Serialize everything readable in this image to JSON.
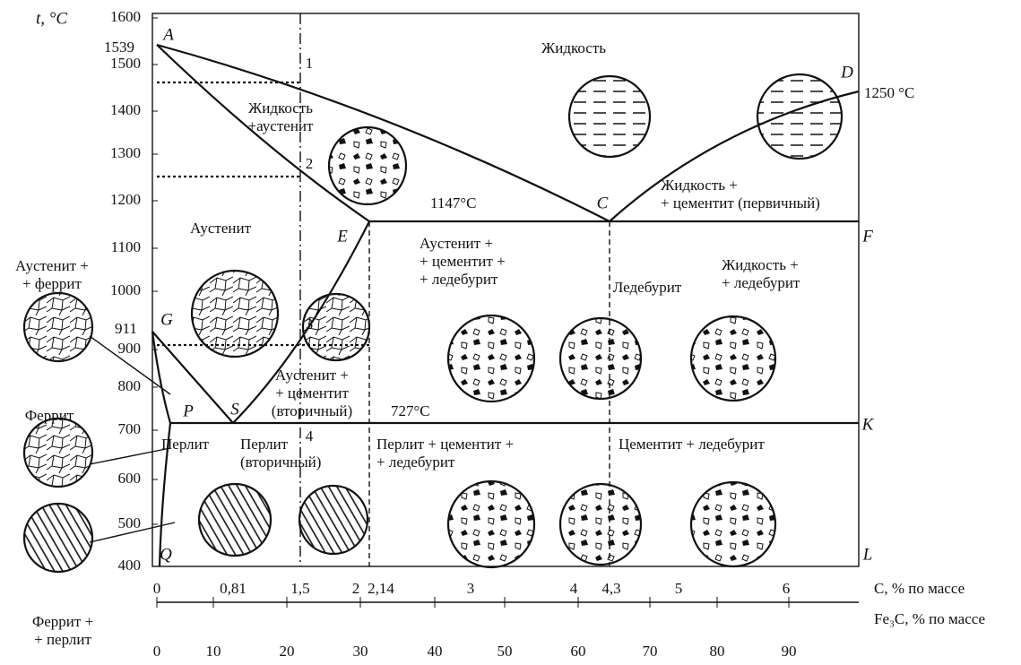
{
  "axes": {
    "y_label": "t, °C",
    "y_ticks": [
      "1600",
      "1500",
      "1400",
      "1300",
      "1200",
      "1100",
      "1000",
      "900",
      "800",
      "700",
      "600",
      "500",
      "400"
    ],
    "x_label": "C, %  по массе",
    "x_ticks": [
      "0",
      "0,81",
      "1,5",
      "2",
      "2,14",
      "3",
      "4",
      "4,3",
      "5",
      "6"
    ],
    "x2_label": "Fe₃C, % по массе",
    "x2_ticks": [
      "0",
      "10",
      "20",
      "30",
      "40",
      "50",
      "60",
      "70",
      "80",
      "90"
    ]
  },
  "points": [
    "A",
    "D",
    "C",
    "E",
    "F",
    "G",
    "P",
    "S",
    "K",
    "Q",
    "L"
  ],
  "markers": [
    "1",
    "2",
    "3",
    "4"
  ],
  "temperatures": [
    "1539",
    "911",
    "1147°C",
    "727°C",
    "1250 °C"
  ],
  "regions": [
    [
      "Жидкость"
    ],
    [
      "Жидкость",
      "+аустенит"
    ],
    [
      "Жидкость +",
      "+ цементит (первичный)"
    ],
    [
      "Аустенит"
    ],
    [
      "Аустенит +",
      "+ цементит +",
      "+ ледебурит"
    ],
    [
      "Ледебурит"
    ],
    [
      "Жидкость +",
      "+ ледебурит"
    ],
    [
      "Аустенит +",
      "+ цементит",
      "(вторичный)"
    ],
    [
      "Перлит"
    ],
    [
      "Перлит",
      "(вторичный)"
    ],
    [
      "Перлит + цементит +",
      "+ ледебурит"
    ],
    [
      "Цементит + ледебурит"
    ],
    [
      "Аустенит +",
      "+ феррит"
    ],
    [
      "Феррит"
    ],
    [
      "Феррит +",
      "+ перлит"
    ]
  ]
}
